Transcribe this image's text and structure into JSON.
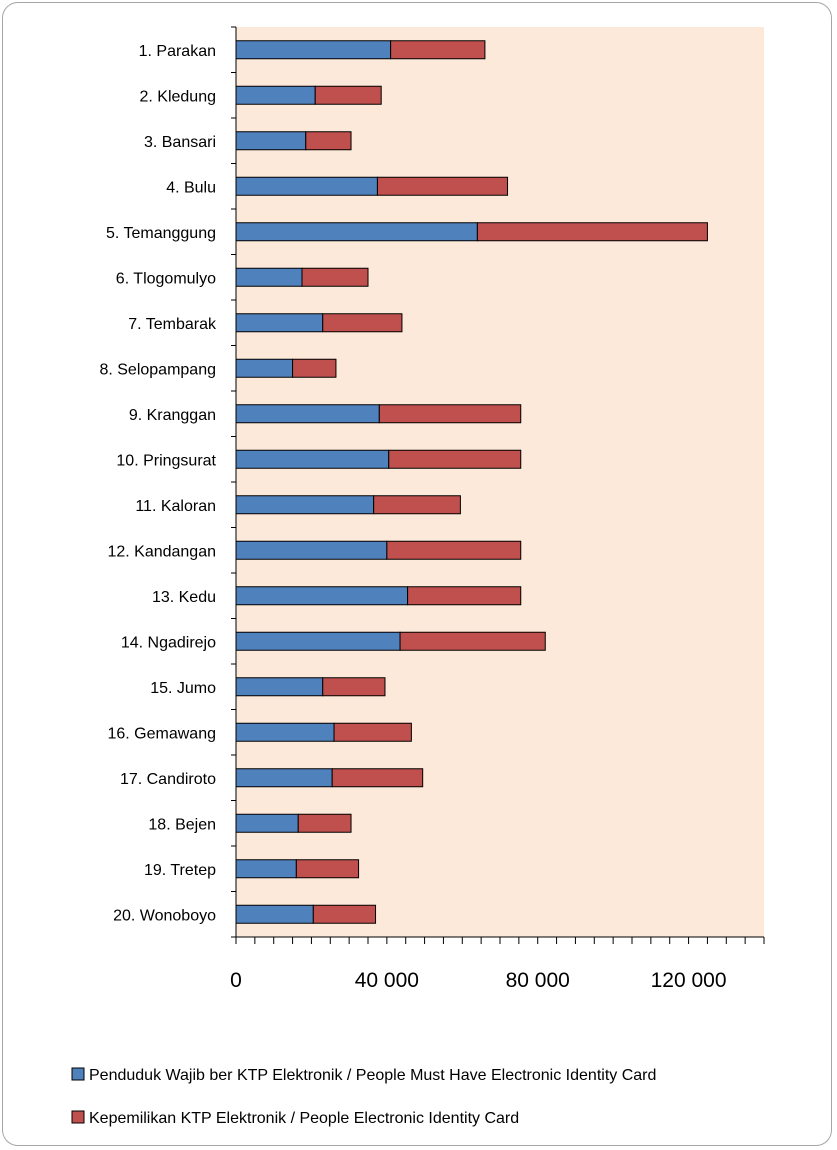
{
  "chart_data": {
    "type": "bar",
    "orientation": "horizontal",
    "stacked": true,
    "categories": [
      "1. Parakan",
      "2. Kledung",
      "3. Bansari",
      "4. Bulu",
      "5. Temanggung",
      "6. Tlogomulyo",
      "7. Tembarak",
      "8. Selopampang",
      "9. Kranggan",
      "10. Pringsurat",
      "11. Kaloran",
      "12. Kandangan",
      "13. Kedu",
      "14. Ngadirejo",
      "15. Jumo",
      "16. Gemawang",
      "17. Candiroto",
      "18. Bejen",
      "19. Tretep",
      "20. Wonoboyo"
    ],
    "series": [
      {
        "name": "Penduduk Wajib ber KTP Elektronik / People Must Have Electronic Identity Card",
        "color": "#4f81bd",
        "values": [
          41000,
          21000,
          18500,
          37500,
          64000,
          17500,
          23000,
          15000,
          38000,
          40500,
          36500,
          40000,
          45500,
          43500,
          23000,
          26000,
          25500,
          16500,
          16000,
          20500
        ]
      },
      {
        "name": "Kepemilikan KTP Elektronik / People Electronic Identity Card",
        "color": "#c0504d",
        "values": [
          25000,
          17500,
          12000,
          34500,
          61000,
          17500,
          21000,
          11500,
          37500,
          35000,
          23000,
          35500,
          30000,
          38500,
          16500,
          20500,
          24000,
          14000,
          16500,
          16500
        ]
      }
    ],
    "xlim": [
      0,
      140000
    ],
    "xticks": [
      "0",
      "40 000",
      "80 000",
      "120 000"
    ],
    "xtick_values": [
      0,
      40000,
      80000,
      120000
    ],
    "grid": false,
    "legend_position": "bottom",
    "plot_background": "#fde9d9"
  }
}
